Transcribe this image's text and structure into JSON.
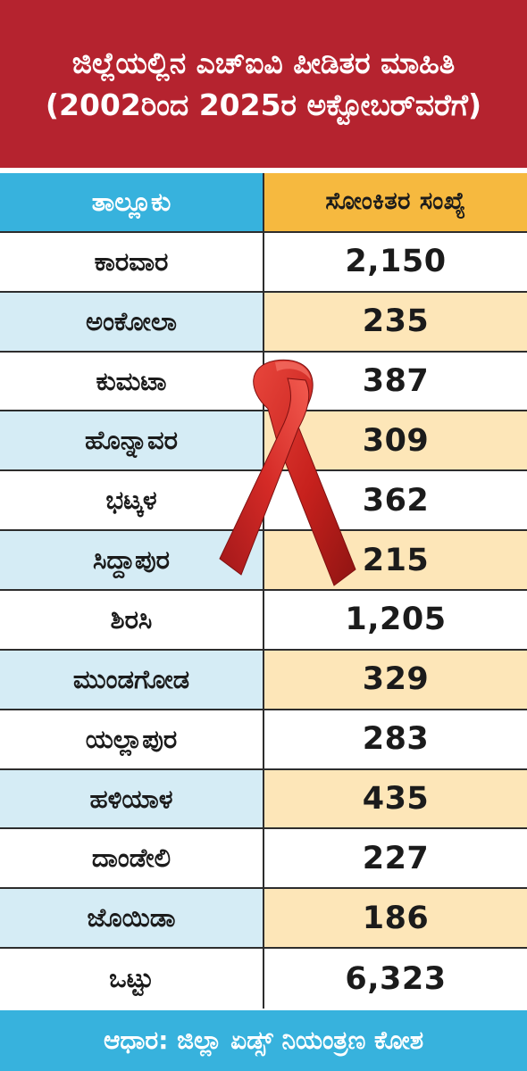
{
  "title": "ಜಿಲ್ಲೆಯಲ್ಲಿನ ಎಚ್‌ಐವಿ ಪೀಡಿತರ ಮಾಹಿತಿ (2002ರಿಂದ 2025ರ ಅಕ್ಟೋಬರ್‌ವರೆಗೆ)",
  "table": {
    "headers": [
      "ತಾಲ್ಲೂಕು",
      "ಸೋಂಕಿತರ ಸಂಖ್ಯೆ"
    ],
    "rows": [
      [
        "ಕಾರವಾರ",
        "2,150"
      ],
      [
        "ಅಂಕೋಲಾ",
        "235"
      ],
      [
        "ಕುಮಟಾ",
        "387"
      ],
      [
        "ಹೊನ್ನಾವರ",
        "309"
      ],
      [
        "ಭಟ್ಕಳ",
        "362"
      ],
      [
        "ಸಿದ್ದಾಪುರ",
        "215"
      ],
      [
        "ಶಿರಸಿ",
        "1,205"
      ],
      [
        "ಮುಂಡಗೋಡ",
        "329"
      ],
      [
        "ಯಲ್ಲಾಪುರ",
        "283"
      ],
      [
        "ಹಳಿಯಾಳ",
        "435"
      ],
      [
        "ದಾಂಡೇಲಿ",
        "227"
      ],
      [
        "ಜೊಯಿಡಾ",
        "186"
      ]
    ],
    "total": [
      "ಒಟ್ಟು",
      "6,323"
    ]
  },
  "footer": "ಆಧಾರ: ಜಿಲ್ಲಾ ಏಡ್ಸ್ ನಿಯಂತ್ರಣ ಕೋಶ",
  "colors": {
    "title_bg": "#b5232f",
    "header_left": "#37b2dd",
    "header_right": "#f6b93f",
    "stripe_left": "#d5ecf5",
    "stripe_right": "#fde6b8",
    "ribbon": "#d42a26"
  },
  "decor": {
    "ribbon_icon": "aids-awareness-ribbon-icon"
  }
}
